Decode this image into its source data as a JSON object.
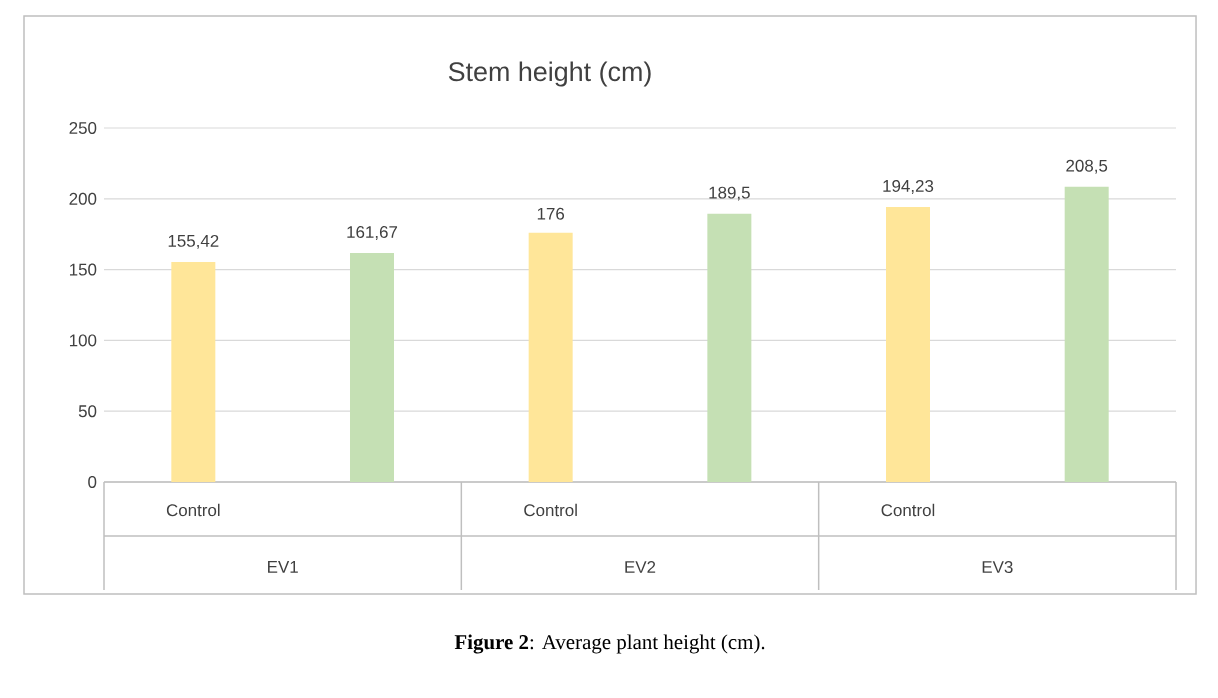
{
  "chart_data": {
    "type": "bar",
    "title": "Stem height (cm)",
    "categories": [
      "EV1",
      "EV2",
      "EV3"
    ],
    "series": [
      {
        "name": "Control",
        "color": "#ffe699",
        "values": [
          155.42,
          176,
          194.23
        ],
        "value_labels": [
          "155,42",
          "176",
          "194,23"
        ]
      },
      {
        "color": "#c5e0b4",
        "values": [
          161.67,
          189.5,
          208.5
        ],
        "value_labels": [
          "161,67",
          "189,5",
          "208,5"
        ]
      }
    ],
    "ylim": [
      0,
      250
    ],
    "yticks": [
      0,
      50,
      100,
      150,
      200,
      250
    ],
    "grid": "y",
    "annotations": [
      "**Figure 2**: Average plant height (cm)."
    ]
  }
}
